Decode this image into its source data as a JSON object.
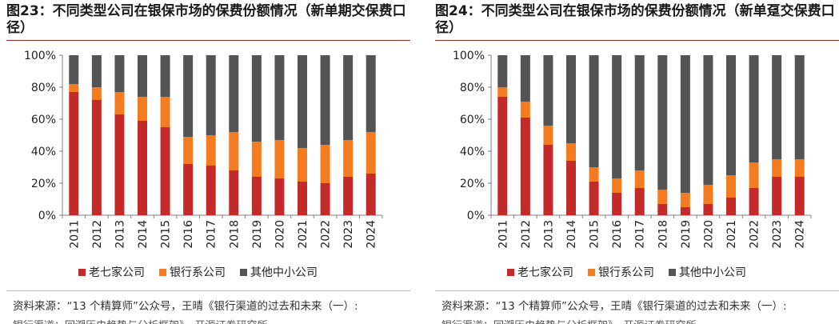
{
  "colors": {
    "old7": "#c42a2a",
    "bank": "#f47b20",
    "other": "#545454",
    "axis": "#7f7f7f",
    "title_rule": "#8a2a2a"
  },
  "chart_data": [
    {
      "type": "bar",
      "stacked": true,
      "title": "图23：不同类型公司在银保市场的保费份额情况（新单期交保费口径）",
      "categories": [
        "2011",
        "2012",
        "2013",
        "2014",
        "2015",
        "2016",
        "2017",
        "2018",
        "2019",
        "2020",
        "2021",
        "2022",
        "2023",
        "2024"
      ],
      "series": [
        {
          "name": "老七家公司",
          "values": [
            77,
            72,
            63,
            59,
            55,
            32,
            31,
            28,
            24,
            23,
            21,
            20,
            24,
            26
          ]
        },
        {
          "name": "银行系公司",
          "values": [
            5,
            8,
            14,
            15,
            19,
            17,
            19,
            24,
            22,
            24,
            21,
            24,
            23,
            26
          ]
        },
        {
          "name": "其他中小公司",
          "values": [
            18,
            20,
            23,
            26,
            26,
            51,
            50,
            48,
            54,
            53,
            58,
            56,
            53,
            48
          ]
        }
      ],
      "yticks": [
        "0%",
        "20%",
        "40%",
        "60%",
        "80%",
        "100%"
      ],
      "ylim": [
        0,
        100
      ],
      "legend_position": "bottom"
    },
    {
      "type": "bar",
      "stacked": true,
      "title": "图24：不同类型公司在银保市场的保费份额情况（新单趸交保费口径）",
      "categories": [
        "2011",
        "2012",
        "2013",
        "2014",
        "2015",
        "2016",
        "2017",
        "2018",
        "2019",
        "2020",
        "2021",
        "2022",
        "2023",
        "2024"
      ],
      "series": [
        {
          "name": "老七家公司",
          "values": [
            74,
            61,
            44,
            34,
            21,
            14,
            17,
            7,
            5,
            7,
            11,
            17,
            24,
            24
          ]
        },
        {
          "name": "银行系公司",
          "values": [
            6,
            10,
            12,
            11,
            9,
            9,
            11,
            9,
            9,
            12,
            14,
            16,
            11,
            11
          ]
        },
        {
          "name": "其他中小公司",
          "values": [
            20,
            29,
            44,
            55,
            70,
            77,
            72,
            84,
            86,
            81,
            75,
            67,
            65,
            65
          ]
        }
      ],
      "yticks": [
        "0%",
        "20%",
        "40%",
        "60%",
        "80%",
        "100%"
      ],
      "ylim": [
        0,
        100
      ],
      "legend_position": "bottom"
    }
  ],
  "sources": [
    {
      "line1": "资料来源：“13 个精算师”公众号，王晴《银行渠道的过去和未来（一）:",
      "line2": "银行渠道：回溯历史趋势与分析框架》，开源证券研究所"
    },
    {
      "line1": "资料来源：“13 个精算师”公众号，王晴《银行渠道的过去和未来（一）:",
      "line2": "银行渠道：回溯历史趋势与分析框架》，开源证券研究所"
    }
  ]
}
